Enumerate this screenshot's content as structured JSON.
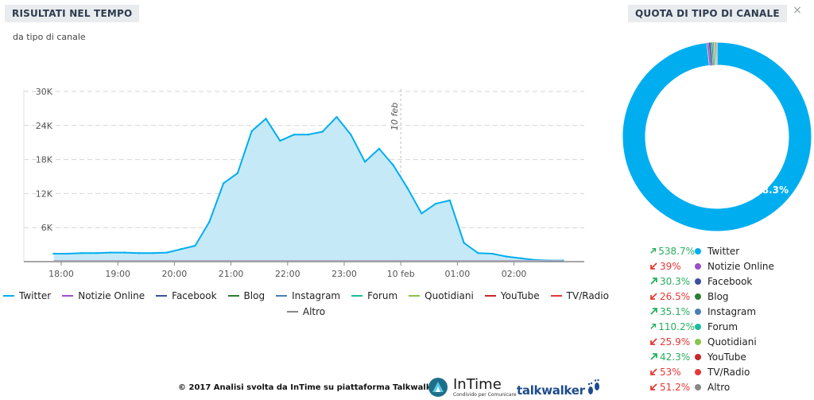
{
  "left_panel": {
    "title": "RISULTATI NEL TEMPO",
    "subtitle": "da tipo di canale"
  },
  "right_panel": {
    "title": "QUOTA DI TIPO DI CANALE"
  },
  "colors": {
    "twitter": "#00aeef",
    "notizie_online": "#9b4fc7",
    "facebook": "#3b4fa0",
    "blog": "#2e7d32",
    "instagram": "#4a7fb5",
    "forum": "#1abc9c",
    "quotidiani": "#8bc34a",
    "youtube": "#c62828",
    "tv_radio": "#e53935",
    "altro": "#888888",
    "up": "#27ae60",
    "down": "#e53935"
  },
  "chart_data": [
    {
      "type": "area",
      "x_ticks": [
        "18:00",
        "19:00",
        "20:00",
        "21:00",
        "22:00",
        "23:00",
        "10 feb",
        "01:00",
        "02:00"
      ],
      "y_ticks": [
        "6K",
        "12K",
        "18K",
        "24K",
        "30K"
      ],
      "ylim": [
        0,
        30000
      ],
      "grid": true,
      "annotation": "10 feb",
      "series": [
        {
          "name": "Twitter",
          "x": [
            "17:52",
            "18:07",
            "18:22",
            "18:37",
            "18:52",
            "19:07",
            "19:22",
            "19:37",
            "19:52",
            "20:07",
            "20:22",
            "20:37",
            "20:52",
            "21:07",
            "21:22",
            "21:37",
            "21:52",
            "22:07",
            "22:22",
            "22:37",
            "22:52",
            "23:07",
            "23:22",
            "23:37",
            "23:52",
            "00:07",
            "00:22",
            "00:37",
            "00:52",
            "01:07",
            "01:22",
            "01:37",
            "01:52",
            "02:07",
            "02:22",
            "02:37",
            "02:52"
          ],
          "values": [
            1400,
            1400,
            1500,
            1500,
            1600,
            1600,
            1500,
            1500,
            1600,
            2200,
            2800,
            7000,
            13800,
            15600,
            23000,
            25200,
            21300,
            22400,
            22400,
            22900,
            25500,
            22400,
            17600,
            19900,
            17000,
            13000,
            8500,
            10200,
            10800,
            3300,
            1500,
            1400,
            900,
            600,
            300,
            200,
            200
          ]
        },
        {
          "name": "Notizie Online",
          "values": []
        },
        {
          "name": "Facebook",
          "values": []
        },
        {
          "name": "Blog",
          "values": []
        },
        {
          "name": "Instagram",
          "values": []
        },
        {
          "name": "Forum",
          "values": []
        },
        {
          "name": "Quotidiani",
          "values": []
        },
        {
          "name": "YouTube",
          "values": []
        },
        {
          "name": "TV/Radio",
          "values": []
        },
        {
          "name": "Altro",
          "values": []
        }
      ]
    },
    {
      "type": "pie",
      "donut": true,
      "label": "98.3%",
      "slices": [
        {
          "name": "Twitter",
          "value": 98.3,
          "change": "538.7%",
          "trend": "up"
        },
        {
          "name": "Notizie Online",
          "value": 0.3,
          "change": "39%",
          "trend": "down"
        },
        {
          "name": "Facebook",
          "value": 0.3,
          "change": "30.3%",
          "trend": "up"
        },
        {
          "name": "Blog",
          "value": 0.2,
          "change": "26.5%",
          "trend": "down"
        },
        {
          "name": "Instagram",
          "value": 0.2,
          "change": "35.1%",
          "trend": "up"
        },
        {
          "name": "Forum",
          "value": 0.2,
          "change": "110.2%",
          "trend": "up"
        },
        {
          "name": "Quotidiani",
          "value": 0.2,
          "change": "25.9%",
          "trend": "down"
        },
        {
          "name": "YouTube",
          "value": 0.1,
          "change": "42.3%",
          "trend": "up"
        },
        {
          "name": "TV/Radio",
          "value": 0.1,
          "change": "53%",
          "trend": "down"
        },
        {
          "name": "Altro",
          "value": 0.1,
          "change": "51.2%",
          "trend": "down"
        }
      ]
    }
  ],
  "footer": {
    "text": "© 2017   Analisi svolta da InTime su piattaforma Talkwalker",
    "intime_name": "InTime",
    "intime_tagline": "Condivido per Comunicare",
    "talkwalker_name": "talkwalker"
  }
}
